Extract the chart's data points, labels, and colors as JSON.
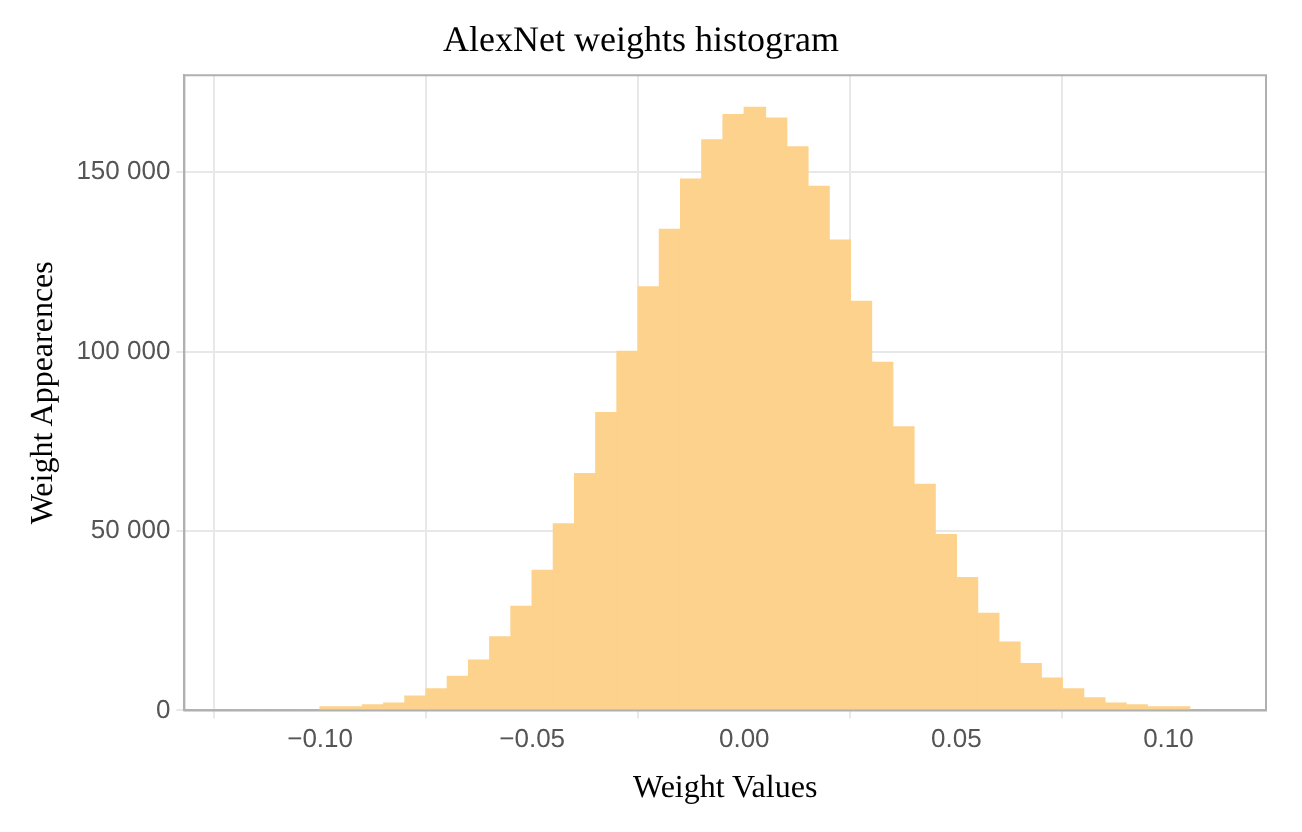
{
  "chart_data": {
    "type": "histogram",
    "title": "AlexNet weights histogram",
    "xlabel": "Weight Values",
    "ylabel": "Weight Appearences",
    "bins": [
      -0.13,
      -0.125,
      -0.12,
      -0.115,
      -0.11,
      -0.105,
      -0.1,
      -0.095,
      -0.09,
      -0.085,
      -0.08,
      -0.075,
      -0.07,
      -0.065,
      -0.06,
      -0.055,
      -0.05,
      -0.045,
      -0.04,
      -0.035,
      -0.03,
      -0.025,
      -0.02,
      -0.015,
      -0.01,
      -0.005,
      0,
      0.005,
      0.01,
      0.015,
      0.02,
      0.025,
      0.03,
      0.035,
      0.04,
      0.045,
      0.05,
      0.055,
      0.06,
      0.065,
      0.07,
      0.075,
      0.08,
      0.085,
      0.09,
      0.095,
      0.1,
      0.105,
      0.11,
      0.115,
      0.12,
      0.125
    ],
    "values": [
      0,
      0,
      0,
      0,
      0,
      0,
      1000,
      1000,
      1500,
      2000,
      4000,
      6000,
      9500,
      14000,
      20500,
      29000,
      39000,
      52000,
      66000,
      83000,
      100000,
      118000,
      134000,
      148000,
      159000,
      166000,
      168000,
      165000,
      157000,
      146000,
      131000,
      114000,
      97000,
      79000,
      63000,
      49000,
      37000,
      27000,
      19000,
      13000,
      9000,
      6000,
      3500,
      2000,
      1500,
      1000,
      1000,
      0,
      0,
      0,
      0
    ],
    "color": "#fcd28c",
    "xlim": [
      -0.132,
      0.123
    ],
    "xticks": [
      {
        "value": -0.1,
        "label": "−0.10"
      },
      {
        "value": -0.05,
        "label": "−0.05"
      },
      {
        "value": 0,
        "label": "0.00"
      },
      {
        "value": 0.05,
        "label": "0.05"
      },
      {
        "value": 0.1,
        "label": "0.10"
      }
    ],
    "ylim": [
      0,
      177000
    ],
    "yticks": [
      0,
      {
        "value": 50000,
        "label": "50 000"
      },
      {
        "value": 100000,
        "label": "100 000"
      },
      {
        "value": 150000,
        "label": "150 000"
      }
    ],
    "grid": true
  }
}
